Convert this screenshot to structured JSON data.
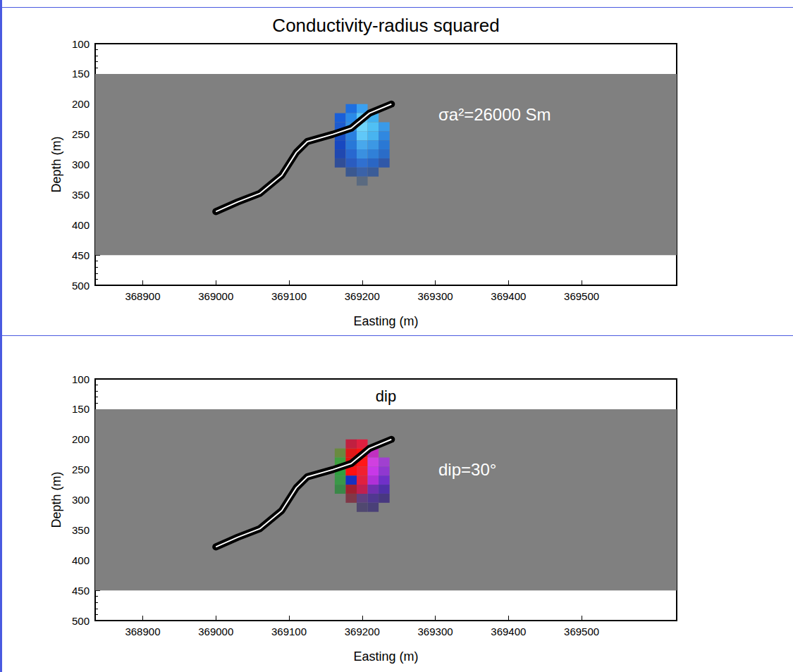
{
  "chart_data": [
    {
      "type": "heatmap",
      "title": "Conductivity-radius squared",
      "annotation": "σa²=26000 Sm",
      "xlabel": "Easting (m)",
      "ylabel": "Depth (m)",
      "xlim": [
        368835,
        369630
      ],
      "xticks": [
        368900,
        369000,
        369100,
        369200,
        369300,
        369400,
        369500
      ],
      "ylim": [
        500,
        100
      ],
      "yticks": [
        100,
        150,
        200,
        250,
        300,
        350,
        400,
        450,
        500
      ],
      "grid": false,
      "model_extent": {
        "x": [
          368835,
          369630
        ],
        "y": [
          150,
          450
        ],
        "color": "#808080"
      },
      "cells": {
        "cell_width": 15,
        "cell_height": 15,
        "x": [
          369185,
          369200,
          369170,
          369185,
          369200,
          369215,
          369170,
          369185,
          369200,
          369215,
          369230,
          369170,
          369185,
          369200,
          369215,
          369230,
          369170,
          369185,
          369200,
          369215,
          369230,
          369170,
          369185,
          369200,
          369215,
          369230,
          369170,
          369185,
          369200,
          369215,
          369230,
          369185,
          369200,
          369215,
          369200
        ],
        "y": [
          207.5,
          207.5,
          222.5,
          222.5,
          222.5,
          222.5,
          237.5,
          237.5,
          237.5,
          237.5,
          237.5,
          252.5,
          252.5,
          252.5,
          252.5,
          252.5,
          267.5,
          267.5,
          267.5,
          267.5,
          267.5,
          282.5,
          282.5,
          282.5,
          282.5,
          282.5,
          297.5,
          297.5,
          297.5,
          297.5,
          297.5,
          312.5,
          312.5,
          312.5,
          327.5
        ],
        "colors": [
          "#1e6fe0",
          "#3aa0f0",
          "#1a5fd8",
          "#2a8ae8",
          "#5cc8f8",
          "#40b0f0",
          "#1d5cd0",
          "#2f90e8",
          "#6fd4fa",
          "#50c0f4",
          "#3a9ae8",
          "#1850c8",
          "#2a80e0",
          "#60c8f8",
          "#48b4f0",
          "#3088e0",
          "#1848c0",
          "#2878d8",
          "#48a8ec",
          "#3c98e4",
          "#2a78d4",
          "#2048b0",
          "#2868d0",
          "#3a90e0",
          "#3080d8",
          "#2a6cc8",
          "#304e98",
          "#2a5cc0",
          "#3070d0",
          "#2a66c4",
          "#3058a8",
          "#3a5890",
          "#3a62a8",
          "#3a5c98",
          "#5a6a80"
        ]
      },
      "series": [
        {
          "type": "line",
          "color": "#000000",
          "x": [
            369000,
            369030,
            369060,
            369090,
            369110,
            369125,
            369160,
            369185,
            369210,
            369240
          ],
          "y": [
            378,
            362,
            348,
            318,
            280,
            262,
            250,
            240,
            215,
            200
          ]
        }
      ]
    },
    {
      "type": "heatmap",
      "title": "dip",
      "annotation": "dip=30°",
      "xlabel": "Easting (m)",
      "ylabel": "Depth (m)",
      "xlim": [
        368835,
        369630
      ],
      "xticks": [
        368900,
        369000,
        369100,
        369200,
        369300,
        369400,
        369500
      ],
      "ylim": [
        500,
        100
      ],
      "yticks": [
        100,
        150,
        200,
        250,
        300,
        350,
        400,
        450,
        500
      ],
      "grid": false,
      "model_extent": {
        "x": [
          368835,
          369630
        ],
        "y": [
          150,
          450
        ],
        "color": "#808080"
      },
      "cells": {
        "cell_width": 15,
        "cell_height": 15,
        "x": [
          369185,
          369200,
          369170,
          369185,
          369200,
          369215,
          369170,
          369185,
          369200,
          369215,
          369230,
          369170,
          369185,
          369200,
          369215,
          369230,
          369170,
          369185,
          369200,
          369215,
          369230,
          369170,
          369185,
          369200,
          369215,
          369230,
          369185,
          369200,
          369215,
          369230,
          369200,
          369215
        ],
        "y": [
          207.5,
          207.5,
          222.5,
          222.5,
          222.5,
          222.5,
          237.5,
          237.5,
          237.5,
          237.5,
          237.5,
          252.5,
          252.5,
          252.5,
          252.5,
          252.5,
          267.5,
          267.5,
          267.5,
          267.5,
          267.5,
          282.5,
          282.5,
          282.5,
          282.5,
          282.5,
          297.5,
          297.5,
          297.5,
          297.5,
          312.5,
          312.5
        ],
        "colors": [
          "#c02040",
          "#e02040",
          "#6a8a40",
          "#e01818",
          "#ff1010",
          "#c030c0",
          "#40a040",
          "#e81010",
          "#ff1818",
          "#d040e0",
          "#a040d0",
          "#30a040",
          "#ff1010",
          "#f02030",
          "#c838e8",
          "#9038d0",
          "#3a9848",
          "#1830c0",
          "#e02040",
          "#b030d8",
          "#7030c8",
          "#3a8848",
          "#a02030",
          "#c02050",
          "#7030b0",
          "#5030a8",
          "#803848",
          "#604080",
          "#503890",
          "#483880",
          "#504870",
          "#4a4078"
        ]
      },
      "series": [
        {
          "type": "line",
          "color": "#000000",
          "x": [
            369000,
            369030,
            369060,
            369090,
            369110,
            369125,
            369160,
            369185,
            369210,
            369240
          ],
          "y": [
            378,
            362,
            348,
            318,
            280,
            262,
            250,
            240,
            215,
            200
          ]
        }
      ]
    }
  ]
}
